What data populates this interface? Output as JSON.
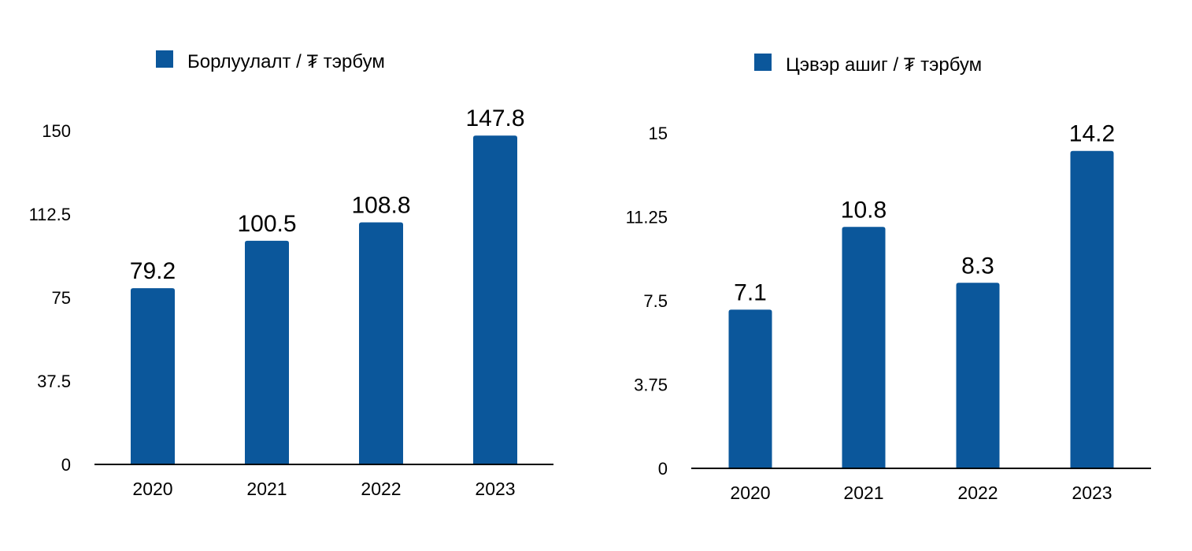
{
  "colors": {
    "bar": "#0B579B",
    "axis": "#000000",
    "text": "#000000"
  },
  "chart_data": [
    {
      "type": "bar",
      "title": "",
      "xlabel": "",
      "ylabel": "",
      "legend": "top",
      "grid": false,
      "ylim": [
        0,
        150
      ],
      "yticks": [
        0,
        37.5,
        75,
        112.5,
        150
      ],
      "ytick_labels": [
        "0",
        "37.5",
        "75",
        "112.5",
        "150"
      ],
      "categories": [
        "2020",
        "2021",
        "2022",
        "2023"
      ],
      "series": [
        {
          "name": "Борлуулалт / ₮ тэрбум",
          "values": [
            79.2,
            100.5,
            108.8,
            147.8
          ],
          "labels": [
            "79.2",
            "100.5",
            "108.8",
            "147.8"
          ]
        }
      ]
    },
    {
      "type": "bar",
      "title": "",
      "xlabel": "",
      "ylabel": "",
      "legend": "top",
      "grid": false,
      "ylim": [
        0,
        15
      ],
      "yticks": [
        0,
        3.75,
        7.5,
        11.25,
        15
      ],
      "ytick_labels": [
        "0",
        "3.75",
        "7.5",
        "11.25",
        "15"
      ],
      "categories": [
        "2020",
        "2021",
        "2022",
        "2023"
      ],
      "series": [
        {
          "name": "Цэвэр ашиг / ₮ тэрбум",
          "values": [
            7.1,
            10.8,
            8.3,
            14.2
          ],
          "labels": [
            "7.1",
            "10.8",
            "8.3",
            "14.2"
          ]
        }
      ]
    }
  ]
}
